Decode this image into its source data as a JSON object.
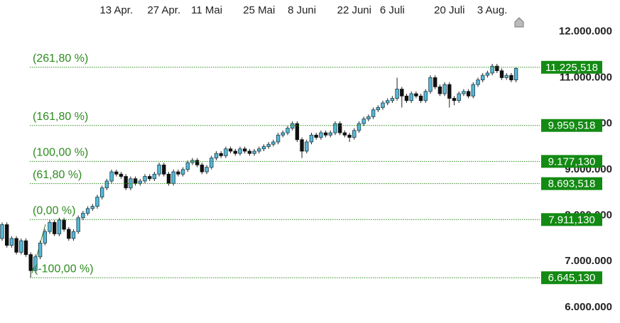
{
  "chart_data": {
    "type": "candlestick",
    "categories": [
      null,
      null,
      null,
      null,
      null,
      null,
      null,
      null,
      null,
      null,
      null,
      null,
      null,
      null,
      null,
      null,
      null,
      null,
      null,
      null,
      null,
      null,
      null,
      null,
      "13 Apr.",
      null,
      null,
      null,
      null,
      null,
      null,
      null,
      null,
      null,
      "27 Apr.",
      null,
      null,
      null,
      null,
      null,
      null,
      null,
      null,
      "11 Mai",
      null,
      null,
      null,
      null,
      null,
      null,
      null,
      null,
      null,
      null,
      "25 Mai",
      null,
      null,
      null,
      null,
      null,
      null,
      null,
      null,
      "8 Juni",
      null,
      null,
      null,
      null,
      null,
      null,
      null,
      null,
      null,
      null,
      "22 Juni",
      null,
      null,
      null,
      null,
      null,
      null,
      null,
      "6 Juli",
      null,
      null,
      null,
      null,
      null,
      null,
      null,
      null,
      null,
      null,
      null,
      "20 Juli",
      null,
      null,
      null,
      null,
      null,
      null,
      null,
      null,
      "3 Aug.",
      null,
      null,
      null,
      null,
      null
    ],
    "open": [
      7500000,
      7800000,
      7350000,
      7500000,
      7200000,
      7450000,
      7150000,
      6800000,
      7100000,
      7400000,
      7650000,
      7850000,
      7600000,
      7900000,
      7700000,
      7500000,
      7650000,
      7950000,
      8050000,
      8150000,
      8200000,
      8400000,
      8600000,
      8750000,
      8950000,
      8900000,
      8850000,
      8600000,
      8800000,
      8700000,
      8750000,
      8850000,
      8800000,
      8900000,
      9100000,
      8900000,
      8700000,
      8950000,
      8900000,
      9000000,
      9150000,
      9200000,
      9100000,
      8950000,
      9050000,
      9250000,
      9350000,
      9300000,
      9450000,
      9400000,
      9350000,
      9450000,
      9400000,
      9350000,
      9400000,
      9450000,
      9500000,
      9550000,
      9600000,
      9750000,
      9800000,
      9900000,
      10000000,
      9650000,
      9400000,
      9600000,
      9750000,
      9700000,
      9800000,
      9750000,
      9800000,
      10000000,
      9800000,
      9750000,
      9700000,
      9850000,
      10000000,
      10100000,
      10150000,
      10300000,
      10350000,
      10450000,
      10500000,
      10550000,
      10750000,
      10600000,
      10500000,
      10650000,
      10600000,
      10500000,
      10700000,
      11000000,
      10800000,
      10650000,
      10850000,
      10550000,
      10500000,
      10650000,
      10700000,
      10600000,
      10850000,
      10950000,
      11050000,
      11100000,
      11250000,
      11150000,
      11000000,
      11050000,
      10950000
    ],
    "high": [
      7850000,
      7850000,
      7550000,
      7550000,
      7500000,
      7500000,
      7200000,
      7150000,
      7450000,
      7700000,
      7900000,
      7900000,
      7950000,
      7950000,
      7750000,
      7700000,
      8000000,
      8100000,
      8200000,
      8250000,
      8450000,
      8650000,
      8800000,
      9000000,
      9000000,
      8950000,
      8900000,
      8850000,
      8850000,
      8800000,
      8900000,
      8900000,
      8950000,
      9150000,
      9150000,
      8950000,
      9000000,
      9000000,
      9050000,
      9200000,
      9250000,
      9250000,
      9150000,
      9100000,
      9300000,
      9400000,
      9400000,
      9500000,
      9500000,
      9450000,
      9500000,
      9500000,
      9450000,
      9450000,
      9500000,
      9550000,
      9600000,
      9650000,
      9800000,
      9850000,
      9950000,
      10050000,
      10050000,
      9700000,
      9650000,
      9800000,
      9800000,
      9850000,
      9850000,
      9850000,
      10050000,
      10050000,
      9850000,
      9800000,
      9900000,
      10050000,
      10150000,
      10200000,
      10350000,
      10400000,
      10500000,
      10550000,
      10600000,
      11000000,
      10800000,
      10650000,
      10700000,
      10700000,
      10650000,
      10750000,
      11050000,
      11050000,
      10850000,
      10900000,
      10900000,
      10600000,
      10700000,
      10750000,
      10750000,
      10900000,
      11000000,
      11100000,
      11150000,
      11300000,
      11300000,
      11200000,
      11100000,
      11100000,
      11225000
    ],
    "low": [
      7450000,
      7300000,
      7300000,
      7150000,
      7150000,
      7100000,
      6645000,
      6750000,
      7050000,
      7350000,
      7600000,
      7550000,
      7550000,
      7650000,
      7450000,
      7450000,
      7600000,
      7900000,
      8000000,
      8100000,
      8150000,
      8350000,
      8550000,
      8700000,
      8850000,
      8800000,
      8550000,
      8550000,
      8650000,
      8650000,
      8700000,
      8750000,
      8750000,
      8850000,
      8850000,
      8650000,
      8650000,
      8850000,
      8850000,
      8950000,
      9100000,
      9050000,
      8900000,
      8900000,
      9000000,
      9200000,
      9250000,
      9250000,
      9350000,
      9300000,
      9300000,
      9350000,
      9300000,
      9300000,
      9350000,
      9400000,
      9450000,
      9500000,
      9550000,
      9700000,
      9750000,
      9850000,
      9600000,
      9250000,
      9350000,
      9550000,
      9650000,
      9650000,
      9700000,
      9700000,
      9750000,
      9750000,
      9700000,
      9600000,
      9650000,
      9800000,
      9950000,
      10050000,
      10100000,
      10250000,
      10300000,
      10400000,
      10450000,
      10500000,
      10350000,
      10450000,
      10450000,
      10550000,
      10450000,
      10450000,
      10650000,
      10750000,
      10600000,
      10600000,
      10350000,
      10400000,
      10450000,
      10600000,
      10550000,
      10550000,
      10800000,
      10900000,
      11000000,
      11050000,
      11100000,
      10950000,
      10950000,
      10900000,
      10900000
    ],
    "close": [
      7800000,
      7350000,
      7500000,
      7200000,
      7450000,
      7150000,
      6800000,
      7100000,
      7400000,
      7650000,
      7850000,
      7600000,
      7900000,
      7700000,
      7500000,
      7650000,
      7950000,
      8050000,
      8150000,
      8200000,
      8400000,
      8600000,
      8750000,
      8950000,
      8900000,
      8850000,
      8600000,
      8800000,
      8700000,
      8750000,
      8850000,
      8800000,
      8900000,
      9100000,
      8900000,
      8700000,
      8950000,
      8900000,
      9000000,
      9150000,
      9200000,
      9100000,
      8950000,
      9050000,
      9250000,
      9350000,
      9300000,
      9450000,
      9400000,
      9350000,
      9450000,
      9400000,
      9350000,
      9400000,
      9450000,
      9500000,
      9550000,
      9600000,
      9750000,
      9800000,
      9900000,
      10000000,
      9650000,
      9400000,
      9600000,
      9750000,
      9700000,
      9800000,
      9750000,
      9800000,
      10000000,
      9800000,
      9750000,
      9700000,
      9850000,
      10000000,
      10100000,
      10150000,
      10300000,
      10350000,
      10450000,
      10500000,
      10550000,
      10750000,
      10600000,
      10500000,
      10650000,
      10600000,
      10500000,
      10700000,
      11000000,
      10800000,
      10650000,
      10850000,
      10550000,
      10500000,
      10650000,
      10700000,
      10600000,
      10850000,
      10950000,
      11050000,
      11100000,
      11250000,
      11150000,
      11000000,
      11050000,
      10950000,
      11200000
    ],
    "up_color": "#57b9d6",
    "down_color": "#111111",
    "ylim": [
      5660000,
      12690000
    ],
    "yticks": [
      {
        "value": 6000000,
        "label": "6.000.000"
      },
      {
        "value": 7000000,
        "label": "7.000.000"
      },
      {
        "value": 8000000,
        "label": "8.000.000"
      },
      {
        "value": 9000000,
        "label": "9.000.000"
      },
      {
        "value": 10000000,
        "label": "10.000.000"
      },
      {
        "value": 11000000,
        "label": "11.000.000"
      },
      {
        "value": 12000000,
        "label": "12.000.000"
      }
    ],
    "levels": {
      "labels": [
        "(261,80 %)",
        "(161,80 %)",
        "(100,00 %)",
        "(61,80 %)",
        "(0,00 %)",
        "(-100,00 %)"
      ],
      "values": [
        11225518,
        9959518,
        9177130,
        8693518,
        7911130,
        6645130
      ],
      "value_labels": [
        "11.225,518",
        "9.959,518",
        "9.177,130",
        "8.693,518",
        "7.911,130",
        "6.645,130"
      ],
      "color": "#2e8b1f"
    }
  }
}
